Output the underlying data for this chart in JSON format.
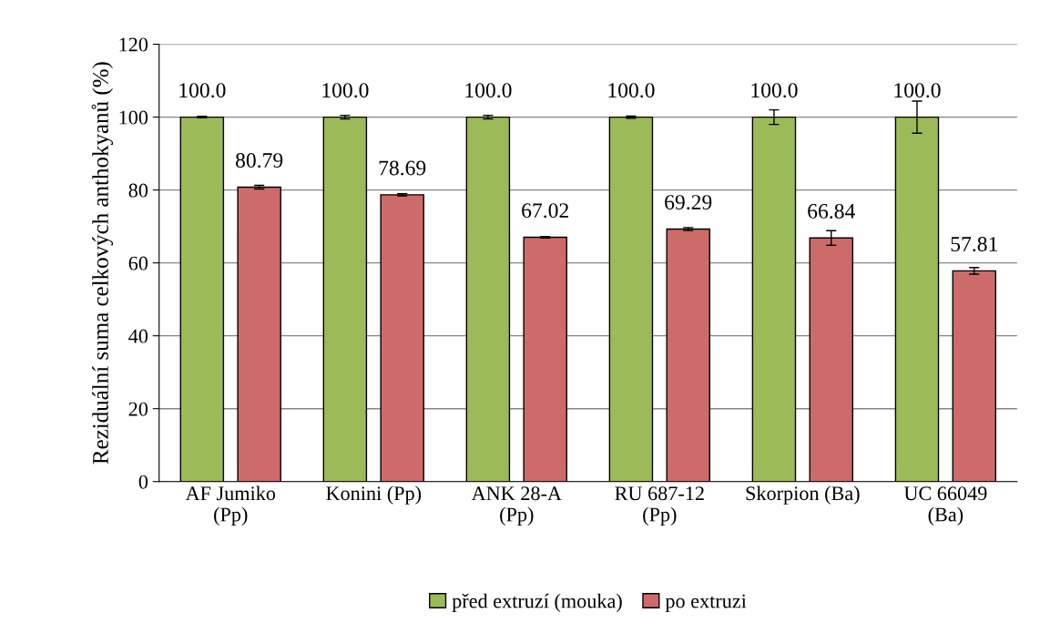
{
  "chart_data": {
    "type": "bar",
    "ylabel": "Reziduální suma celkových anthokyanů (%)",
    "categories": [
      "AF Jumiko\n(Pp)",
      "Konini (Pp)",
      "ANK 28-A\n(Pp)",
      "RU 687-12\n(Pp)",
      "Skorpion (Ba)",
      "UC 66049\n(Ba)"
    ],
    "series": [
      {
        "name": "před extruzí (mouka)",
        "color": "#9bbb59",
        "values": [
          100.0,
          100.0,
          100.0,
          100.0,
          100.0,
          100.0
        ],
        "errors": [
          0.2,
          0.5,
          0.5,
          0.3,
          2,
          4.4
        ],
        "value_labels": [
          "100.0",
          "100.0",
          "100.0",
          "100.0",
          "100.0",
          "100.0"
        ]
      },
      {
        "name": "po extruzi",
        "color": "#cd6b6b",
        "values": [
          80.79,
          78.69,
          67.02,
          69.29,
          66.84,
          57.81
        ],
        "errors": [
          0.5,
          0.3,
          0.2,
          0.4,
          2,
          0.9
        ],
        "value_labels": [
          "80.79",
          "78.69",
          "67.02",
          "69.29",
          "66.84",
          "57.81"
        ]
      }
    ],
    "ylim": [
      0,
      120
    ],
    "yticks": [
      0,
      20,
      40,
      60,
      80,
      100,
      120
    ],
    "grid": "y",
    "legend": "bottom"
  }
}
